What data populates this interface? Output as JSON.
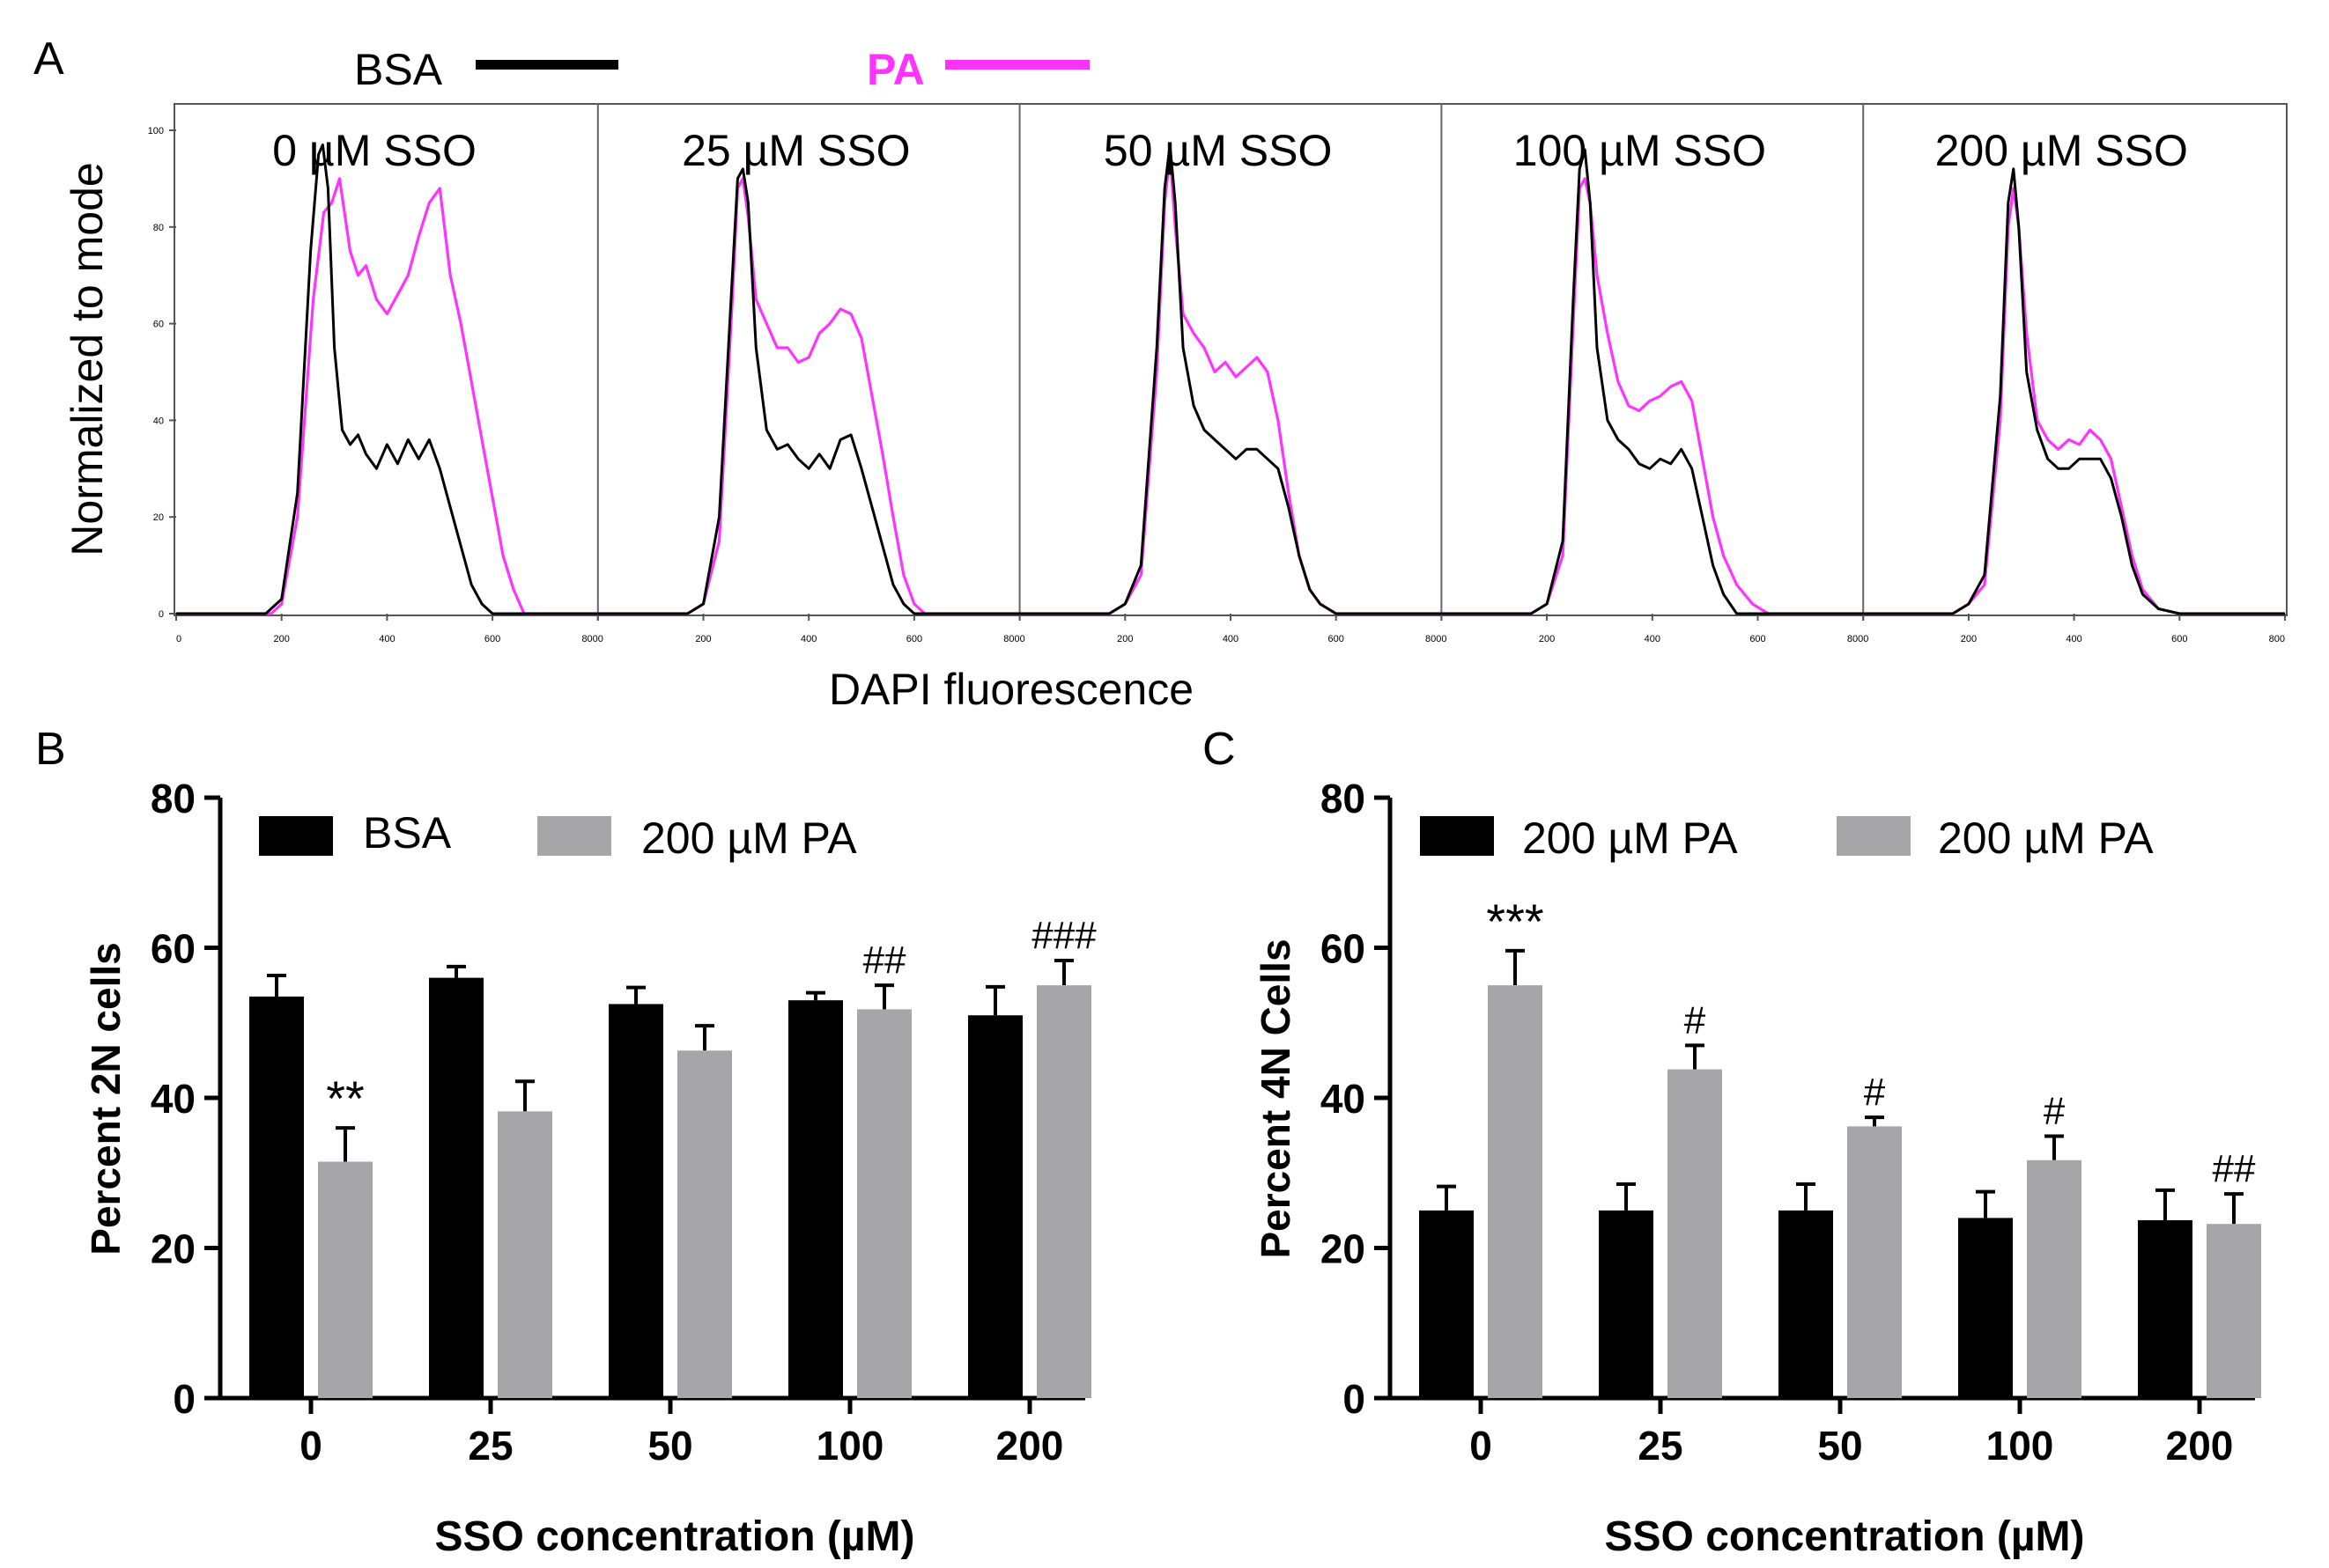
{
  "colors": {
    "bsa": "#000000",
    "pa": "#ff33ff",
    "bar_pa": "#a6a6a8",
    "axis": "#000000"
  },
  "panels": {
    "a": "A",
    "b": "B",
    "c": "C"
  },
  "chart_data": [
    {
      "panel": "A",
      "type": "line",
      "legend": [
        {
          "name": "BSA",
          "color": "#000000"
        },
        {
          "name": "PA",
          "color": "#ff33ff"
        }
      ],
      "ylabel": "Normalized to mode",
      "xlabel": "DAPI fluorescence",
      "xlim": [
        0,
        800
      ],
      "ylim": [
        0,
        100
      ],
      "xticks": [
        0,
        200,
        400,
        600,
        800
      ],
      "xtick_labels": [
        "0",
        "200",
        "400",
        "600",
        "800"
      ],
      "yticks": [
        0,
        20,
        40,
        60,
        80,
        100
      ],
      "ytick_labels": [
        "0",
        "20",
        "40",
        "60",
        "80",
        "100"
      ],
      "subplots": [
        {
          "title": "0 µM SSO",
          "series": [
            {
              "name": "BSA",
              "x": [
                0,
                170,
                200,
                230,
                255,
                270,
                278,
                288,
                300,
                315,
                330,
                345,
                360,
                380,
                400,
                420,
                440,
                460,
                480,
                500,
                520,
                540,
                560,
                580,
                600,
                640,
                800
              ],
              "y": [
                0,
                0,
                3,
                25,
                75,
                95,
                97,
                88,
                55,
                38,
                35,
                37,
                33,
                30,
                35,
                31,
                36,
                32,
                36,
                30,
                22,
                14,
                6,
                2,
                0,
                0,
                0
              ]
            },
            {
              "name": "PA",
              "x": [
                0,
                180,
                200,
                230,
                260,
                280,
                295,
                310,
                330,
                345,
                360,
                380,
                400,
                420,
                440,
                460,
                480,
                500,
                520,
                540,
                560,
                580,
                600,
                620,
                640,
                660,
                800
              ],
              "y": [
                0,
                0,
                2,
                20,
                65,
                83,
                85,
                90,
                75,
                70,
                72,
                65,
                62,
                66,
                70,
                78,
                85,
                88,
                70,
                60,
                48,
                36,
                24,
                12,
                5,
                0,
                0
              ]
            }
          ]
        },
        {
          "title": "25 µM SSO",
          "series": [
            {
              "name": "BSA",
              "x": [
                0,
                170,
                200,
                230,
                255,
                265,
                275,
                285,
                300,
                320,
                340,
                360,
                380,
                400,
                420,
                440,
                460,
                480,
                500,
                520,
                540,
                560,
                580,
                600,
                800
              ],
              "y": [
                0,
                0,
                2,
                20,
                70,
                90,
                92,
                85,
                55,
                38,
                34,
                35,
                32,
                30,
                33,
                30,
                36,
                37,
                30,
                22,
                14,
                6,
                2,
                0,
                0
              ]
            },
            {
              "name": "PA",
              "x": [
                0,
                170,
                200,
                230,
                255,
                265,
                275,
                285,
                300,
                320,
                340,
                360,
                380,
                400,
                420,
                440,
                460,
                480,
                500,
                520,
                540,
                560,
                580,
                600,
                620,
                800
              ],
              "y": [
                0,
                0,
                2,
                15,
                65,
                88,
                90,
                82,
                65,
                60,
                55,
                55,
                52,
                53,
                58,
                60,
                63,
                62,
                57,
                45,
                33,
                20,
                8,
                2,
                0,
                0
              ]
            }
          ]
        },
        {
          "title": "50 µM SSO",
          "series": [
            {
              "name": "BSA",
              "x": [
                0,
                170,
                200,
                230,
                260,
                275,
                285,
                295,
                310,
                330,
                350,
                370,
                390,
                410,
                430,
                450,
                470,
                490,
                510,
                530,
                550,
                570,
                600,
                800
              ],
              "y": [
                0,
                0,
                2,
                10,
                55,
                88,
                97,
                85,
                55,
                43,
                38,
                36,
                34,
                32,
                34,
                34,
                32,
                30,
                22,
                12,
                5,
                2,
                0,
                0
              ]
            },
            {
              "name": "PA",
              "x": [
                0,
                170,
                200,
                230,
                260,
                275,
                285,
                295,
                310,
                330,
                350,
                370,
                390,
                410,
                430,
                450,
                470,
                490,
                510,
                530,
                550,
                570,
                600,
                800
              ],
              "y": [
                0,
                0,
                2,
                8,
                50,
                85,
                95,
                80,
                62,
                58,
                55,
                50,
                52,
                49,
                51,
                53,
                50,
                40,
                25,
                12,
                5,
                2,
                0,
                0
              ]
            }
          ]
        },
        {
          "title": "100 µM SSO",
          "series": [
            {
              "name": "BSA",
              "x": [
                0,
                170,
                200,
                230,
                250,
                262,
                272,
                282,
                295,
                315,
                335,
                355,
                375,
                395,
                415,
                435,
                455,
                475,
                495,
                515,
                535,
                560,
                600,
                800
              ],
              "y": [
                0,
                0,
                2,
                15,
                65,
                92,
                96,
                85,
                55,
                40,
                36,
                34,
                31,
                30,
                32,
                31,
                34,
                30,
                20,
                10,
                4,
                0,
                0,
                0
              ]
            },
            {
              "name": "PA",
              "x": [
                0,
                170,
                200,
                230,
                250,
                262,
                272,
                282,
                295,
                315,
                335,
                355,
                375,
                395,
                415,
                435,
                455,
                475,
                495,
                515,
                535,
                560,
                590,
                620,
                800
              ],
              "y": [
                0,
                0,
                2,
                12,
                60,
                88,
                90,
                85,
                70,
                58,
                48,
                43,
                42,
                44,
                45,
                47,
                48,
                44,
                32,
                20,
                12,
                6,
                2,
                0,
                0
              ]
            }
          ]
        },
        {
          "title": "200 µM SSO",
          "series": [
            {
              "name": "BSA",
              "x": [
                0,
                170,
                200,
                230,
                260,
                275,
                285,
                295,
                310,
                330,
                350,
                370,
                390,
                410,
                430,
                450,
                470,
                490,
                510,
                530,
                560,
                600,
                800
              ],
              "y": [
                0,
                0,
                2,
                8,
                45,
                85,
                92,
                80,
                50,
                38,
                32,
                30,
                30,
                32,
                32,
                32,
                28,
                20,
                10,
                4,
                1,
                0,
                0
              ]
            },
            {
              "name": "PA",
              "x": [
                0,
                170,
                200,
                230,
                260,
                275,
                285,
                295,
                310,
                330,
                350,
                370,
                390,
                410,
                430,
                450,
                470,
                490,
                510,
                530,
                560,
                600,
                800
              ],
              "y": [
                0,
                0,
                2,
                6,
                40,
                80,
                88,
                80,
                58,
                40,
                36,
                34,
                36,
                35,
                38,
                36,
                32,
                22,
                12,
                5,
                1,
                0,
                0
              ]
            }
          ]
        }
      ]
    },
    {
      "panel": "B",
      "type": "bar",
      "categories": [
        "0",
        "25",
        "50",
        "100",
        "200"
      ],
      "series": [
        {
          "name": "BSA",
          "color": "#000000",
          "values": [
            53.5,
            56,
            52.5,
            53,
            51
          ],
          "errors": [
            2.8,
            1.5,
            2.2,
            1,
            3.8
          ]
        },
        {
          "name": "200 µM PA",
          "color": "#a6a6a8",
          "values": [
            31.5,
            38.2,
            46.3,
            51.8,
            55
          ],
          "errors": [
            4.5,
            4,
            3.3,
            3.2,
            3.3
          ]
        }
      ],
      "annotations": [
        "**",
        "",
        "",
        "##",
        "###"
      ],
      "ylabel": "Percent 2N cells",
      "xlabel": "SSO concentration (µM)",
      "ylim": [
        0,
        80
      ],
      "yticks": [
        0,
        20,
        40,
        60,
        80
      ],
      "ytick_labels": [
        "0",
        "20",
        "40",
        "60",
        "80"
      ]
    },
    {
      "panel": "C",
      "type": "bar",
      "categories": [
        "0",
        "25",
        "50",
        "100",
        "200"
      ],
      "series": [
        {
          "name": "200 µM PA",
          "color": "#000000",
          "values": [
            25,
            25,
            25,
            24,
            23.7
          ],
          "errors": [
            3.2,
            3.5,
            3.5,
            3.5,
            4
          ]
        },
        {
          "name": "200 µM PA",
          "color": "#a6a6a8",
          "values": [
            55,
            43.8,
            36.2,
            31.7,
            23.2
          ],
          "errors": [
            4.6,
            3.2,
            1.2,
            3.2,
            4
          ]
        }
      ],
      "annotations": [
        "***",
        "#",
        "#",
        "#",
        "##"
      ],
      "ylabel": "Percent 4N Cells",
      "xlabel": "SSO concentration (µM)",
      "ylim": [
        0,
        80
      ],
      "yticks": [
        0,
        20,
        40,
        60,
        80
      ],
      "ytick_labels": [
        "0",
        "20",
        "40",
        "60",
        "80"
      ]
    }
  ]
}
